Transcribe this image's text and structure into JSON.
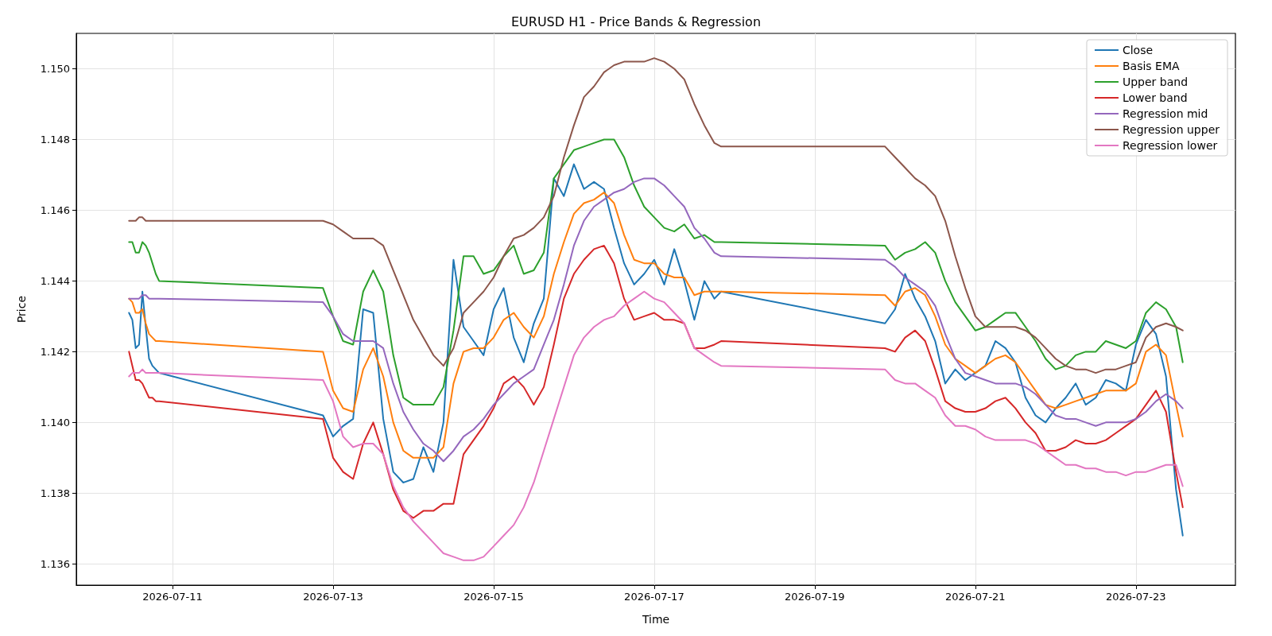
{
  "chart_data": {
    "type": "line",
    "title": "EURUSD H1 - Price Bands & Regression",
    "xlabel": "Time",
    "ylabel": "Price",
    "x": [
      "2026-07-10T11:00",
      "2026-07-10T12:00",
      "2026-07-10T13:00",
      "2026-07-10T14:00",
      "2026-07-10T15:00",
      "2026-07-10T16:00",
      "2026-07-10T17:00",
      "2026-07-10T18:00",
      "2026-07-10T19:00",
      "2026-07-10T20:00",
      "2026-07-12T21:00",
      "2026-07-13T00:00",
      "2026-07-13T03:00",
      "2026-07-13T06:00",
      "2026-07-13T09:00",
      "2026-07-13T12:00",
      "2026-07-13T15:00",
      "2026-07-13T18:00",
      "2026-07-13T21:00",
      "2026-07-14T00:00",
      "2026-07-14T03:00",
      "2026-07-14T06:00",
      "2026-07-14T09:00",
      "2026-07-14T12:00",
      "2026-07-14T15:00",
      "2026-07-14T18:00",
      "2026-07-14T21:00",
      "2026-07-15T00:00",
      "2026-07-15T03:00",
      "2026-07-15T06:00",
      "2026-07-15T09:00",
      "2026-07-15T12:00",
      "2026-07-15T15:00",
      "2026-07-15T18:00",
      "2026-07-15T21:00",
      "2026-07-16T00:00",
      "2026-07-16T03:00",
      "2026-07-16T06:00",
      "2026-07-16T09:00",
      "2026-07-16T12:00",
      "2026-07-16T15:00",
      "2026-07-16T18:00",
      "2026-07-16T21:00",
      "2026-07-17T00:00",
      "2026-07-17T03:00",
      "2026-07-17T06:00",
      "2026-07-17T09:00",
      "2026-07-17T12:00",
      "2026-07-17T15:00",
      "2026-07-17T18:00",
      "2026-07-17T20:00",
      "2026-07-19T21:00",
      "2026-07-20T00:00",
      "2026-07-20T03:00",
      "2026-07-20T06:00",
      "2026-07-20T09:00",
      "2026-07-20T12:00",
      "2026-07-20T15:00",
      "2026-07-20T18:00",
      "2026-07-20T21:00",
      "2026-07-21T00:00",
      "2026-07-21T03:00",
      "2026-07-21T06:00",
      "2026-07-21T09:00",
      "2026-07-21T12:00",
      "2026-07-21T15:00",
      "2026-07-21T18:00",
      "2026-07-21T21:00",
      "2026-07-22T00:00",
      "2026-07-22T03:00",
      "2026-07-22T06:00",
      "2026-07-22T09:00",
      "2026-07-22T12:00",
      "2026-07-22T15:00",
      "2026-07-22T18:00",
      "2026-07-22T21:00",
      "2026-07-23T00:00",
      "2026-07-23T03:00",
      "2026-07-23T06:00",
      "2026-07-23T09:00",
      "2026-07-23T12:00",
      "2026-07-23T14:00"
    ],
    "series": [
      {
        "name": "Close",
        "color": "#1f77b4",
        "values": [
          1.1431,
          1.1429,
          1.1421,
          1.1422,
          1.1437,
          1.1427,
          1.1418,
          1.1416,
          1.1415,
          1.1414,
          1.1402,
          1.1396,
          1.1399,
          1.1401,
          1.1432,
          1.1431,
          1.1401,
          1.1386,
          1.1383,
          1.1384,
          1.1393,
          1.1386,
          1.14,
          1.1446,
          1.1427,
          1.1423,
          1.1419,
          1.1432,
          1.1438,
          1.1424,
          1.1417,
          1.1428,
          1.1435,
          1.1469,
          1.1464,
          1.1473,
          1.1466,
          1.1468,
          1.1466,
          1.1455,
          1.1445,
          1.1439,
          1.1442,
          1.1446,
          1.1439,
          1.1449,
          1.144,
          1.1429,
          1.144,
          1.1435,
          1.1437,
          1.1428,
          1.1432,
          1.1442,
          1.1435,
          1.143,
          1.1423,
          1.1411,
          1.1415,
          1.1412,
          1.1414,
          1.1416,
          1.1423,
          1.1421,
          1.1417,
          1.1407,
          1.1402,
          1.14,
          1.1404,
          1.1407,
          1.1411,
          1.1405,
          1.1407,
          1.1412,
          1.1411,
          1.1409,
          1.1422,
          1.1429,
          1.1425,
          1.1413,
          1.1381,
          1.1368
        ]
      },
      {
        "name": "Basis EMA",
        "color": "#ff7f0e",
        "values": [
          1.1435,
          1.1434,
          1.1431,
          1.1431,
          1.1432,
          1.1428,
          1.1425,
          1.1424,
          1.1423,
          1.1423,
          1.142,
          1.1409,
          1.1404,
          1.1403,
          1.1415,
          1.1421,
          1.1413,
          1.14,
          1.1392,
          1.139,
          1.139,
          1.139,
          1.1393,
          1.1411,
          1.142,
          1.1421,
          1.1421,
          1.1424,
          1.1429,
          1.1431,
          1.1427,
          1.1424,
          1.143,
          1.1442,
          1.1451,
          1.1459,
          1.1462,
          1.1463,
          1.1465,
          1.1462,
          1.1453,
          1.1446,
          1.1445,
          1.1445,
          1.1442,
          1.1441,
          1.1441,
          1.1436,
          1.1437,
          1.1437,
          1.1437,
          1.1436,
          1.1433,
          1.1437,
          1.1438,
          1.1436,
          1.143,
          1.1422,
          1.1418,
          1.1416,
          1.1414,
          1.1416,
          1.1418,
          1.1419,
          1.1417,
          1.1413,
          1.1409,
          1.1405,
          1.1404,
          1.1405,
          1.1406,
          1.1407,
          1.1408,
          1.1409,
          1.1409,
          1.1409,
          1.1411,
          1.142,
          1.1422,
          1.1419,
          1.1405,
          1.1396
        ]
      },
      {
        "name": "Upper band",
        "color": "#2ca02c",
        "values": [
          1.1451,
          1.1451,
          1.1448,
          1.1448,
          1.1451,
          1.145,
          1.1448,
          1.1445,
          1.1442,
          1.144,
          1.1438,
          1.143,
          1.1423,
          1.1422,
          1.1437,
          1.1443,
          1.1437,
          1.1419,
          1.1407,
          1.1405,
          1.1405,
          1.1405,
          1.141,
          1.1426,
          1.1447,
          1.1447,
          1.1442,
          1.1443,
          1.1447,
          1.145,
          1.1442,
          1.1443,
          1.1448,
          1.1469,
          1.1473,
          1.1477,
          1.1478,
          1.1479,
          1.148,
          1.148,
          1.1475,
          1.1467,
          1.1461,
          1.1458,
          1.1455,
          1.1454,
          1.1456,
          1.1452,
          1.1453,
          1.1451,
          1.1451,
          1.145,
          1.1446,
          1.1448,
          1.1449,
          1.1451,
          1.1448,
          1.144,
          1.1434,
          1.143,
          1.1426,
          1.1427,
          1.1429,
          1.1431,
          1.1431,
          1.1427,
          1.1423,
          1.1418,
          1.1415,
          1.1416,
          1.1419,
          1.142,
          1.142,
          1.1423,
          1.1422,
          1.1421,
          1.1423,
          1.1431,
          1.1434,
          1.1432,
          1.1427,
          1.1417
        ]
      },
      {
        "name": "Lower band",
        "color": "#d62728",
        "values": [
          1.142,
          1.1416,
          1.1412,
          1.1412,
          1.1411,
          1.1409,
          1.1407,
          1.1407,
          1.1406,
          1.1406,
          1.1401,
          1.139,
          1.1386,
          1.1384,
          1.1394,
          1.14,
          1.1391,
          1.1381,
          1.1375,
          1.1373,
          1.1375,
          1.1375,
          1.1377,
          1.1377,
          1.1391,
          1.1395,
          1.1399,
          1.1404,
          1.1411,
          1.1413,
          1.141,
          1.1405,
          1.141,
          1.1422,
          1.1435,
          1.1442,
          1.1446,
          1.1449,
          1.145,
          1.1445,
          1.1435,
          1.1429,
          1.143,
          1.1431,
          1.1429,
          1.1429,
          1.1428,
          1.1421,
          1.1421,
          1.1422,
          1.1423,
          1.1421,
          1.142,
          1.1424,
          1.1426,
          1.1423,
          1.1415,
          1.1406,
          1.1404,
          1.1403,
          1.1403,
          1.1404,
          1.1406,
          1.1407,
          1.1404,
          1.14,
          1.1397,
          1.1392,
          1.1392,
          1.1393,
          1.1395,
          1.1394,
          1.1394,
          1.1395,
          1.1397,
          1.1399,
          1.1401,
          1.1405,
          1.1409,
          1.1403,
          1.1386,
          1.1376
        ]
      },
      {
        "name": "Regression mid",
        "color": "#9467bd",
        "values": [
          1.1435,
          1.1435,
          1.1435,
          1.1435,
          1.1436,
          1.1436,
          1.1435,
          1.1435,
          1.1435,
          1.1435,
          1.1434,
          1.143,
          1.1425,
          1.1423,
          1.1423,
          1.1423,
          1.1421,
          1.1411,
          1.1403,
          1.1398,
          1.1394,
          1.1392,
          1.1389,
          1.1392,
          1.1396,
          1.1398,
          1.1401,
          1.1405,
          1.1408,
          1.1411,
          1.1413,
          1.1415,
          1.1422,
          1.1429,
          1.1439,
          1.145,
          1.1457,
          1.1461,
          1.1463,
          1.1465,
          1.1466,
          1.1468,
          1.1469,
          1.1469,
          1.1467,
          1.1464,
          1.1461,
          1.1455,
          1.1452,
          1.1448,
          1.1447,
          1.1446,
          1.1444,
          1.1441,
          1.1439,
          1.1437,
          1.1433,
          1.1425,
          1.1418,
          1.1414,
          1.1413,
          1.1412,
          1.1411,
          1.1411,
          1.1411,
          1.141,
          1.1408,
          1.1405,
          1.1402,
          1.1401,
          1.1401,
          1.14,
          1.1399,
          1.14,
          1.14,
          1.14,
          1.1401,
          1.1403,
          1.1406,
          1.1408,
          1.1406,
          1.1404
        ]
      },
      {
        "name": "Regression upper",
        "color": "#8c564b",
        "values": [
          1.1457,
          1.1457,
          1.1457,
          1.1458,
          1.1458,
          1.1457,
          1.1457,
          1.1457,
          1.1457,
          1.1457,
          1.1457,
          1.1456,
          1.1454,
          1.1452,
          1.1452,
          1.1452,
          1.145,
          1.1443,
          1.1436,
          1.1429,
          1.1424,
          1.1419,
          1.1416,
          1.1421,
          1.1431,
          1.1434,
          1.1437,
          1.1441,
          1.1447,
          1.1452,
          1.1453,
          1.1455,
          1.1458,
          1.1464,
          1.1475,
          1.1484,
          1.1492,
          1.1495,
          1.1499,
          1.1501,
          1.1502,
          1.1502,
          1.1502,
          1.1503,
          1.1502,
          1.15,
          1.1497,
          1.149,
          1.1484,
          1.1479,
          1.1478,
          1.1478,
          1.1475,
          1.1472,
          1.1469,
          1.1467,
          1.1464,
          1.1457,
          1.1447,
          1.1438,
          1.143,
          1.1427,
          1.1427,
          1.1427,
          1.1427,
          1.1426,
          1.1424,
          1.1421,
          1.1418,
          1.1416,
          1.1415,
          1.1415,
          1.1414,
          1.1415,
          1.1415,
          1.1416,
          1.1417,
          1.1424,
          1.1427,
          1.1428,
          1.1427,
          1.1426
        ]
      },
      {
        "name": "Regression lower",
        "color": "#e377c2",
        "values": [
          1.1413,
          1.1414,
          1.1414,
          1.1414,
          1.1415,
          1.1414,
          1.1414,
          1.1414,
          1.1414,
          1.1414,
          1.1412,
          1.1406,
          1.1396,
          1.1393,
          1.1394,
          1.1394,
          1.1391,
          1.1382,
          1.1376,
          1.1372,
          1.1369,
          1.1366,
          1.1363,
          1.1362,
          1.1361,
          1.1361,
          1.1362,
          1.1365,
          1.1368,
          1.1371,
          1.1376,
          1.1383,
          1.1392,
          1.1401,
          1.141,
          1.1419,
          1.1424,
          1.1427,
          1.1429,
          1.143,
          1.1433,
          1.1435,
          1.1437,
          1.1435,
          1.1434,
          1.1431,
          1.1428,
          1.1421,
          1.1419,
          1.1417,
          1.1416,
          1.1415,
          1.1412,
          1.1411,
          1.1411,
          1.1409,
          1.1407,
          1.1402,
          1.1399,
          1.1399,
          1.1398,
          1.1396,
          1.1395,
          1.1395,
          1.1395,
          1.1395,
          1.1394,
          1.1392,
          1.139,
          1.1388,
          1.1388,
          1.1387,
          1.1387,
          1.1386,
          1.1386,
          1.1385,
          1.1386,
          1.1386,
          1.1387,
          1.1388,
          1.1388,
          1.1382
        ]
      }
    ],
    "xlim": [
      "2026-07-09T19:15",
      "2026-07-24T05:45"
    ],
    "xticks": [
      "2026-07-11",
      "2026-07-13",
      "2026-07-15",
      "2026-07-17",
      "2026-07-19",
      "2026-07-21",
      "2026-07-23"
    ],
    "ylim": [
      1.1354,
      1.151
    ],
    "yticks": [
      1.136,
      1.138,
      {
        "value": 1.14,
        "label": "1.140"
      },
      1.142,
      1.144,
      1.146,
      1.148,
      {
        "value": 1.15,
        "label": "1.150"
      }
    ],
    "grid": true,
    "legend": "top right",
    "marker": "none",
    "line_style": "solid"
  }
}
